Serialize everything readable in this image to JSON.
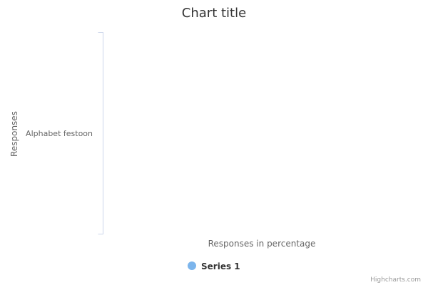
{
  "chart_data": {
    "type": "bar",
    "title": "Chart title",
    "xlabel": "Responses",
    "ylabel": "Responses in percentage",
    "categories": [
      "Alphabet festoon"
    ],
    "series": [
      {
        "name": "Series 1",
        "values": [
          0
        ]
      }
    ],
    "legend": "bottom-center",
    "grid": false,
    "colors": {
      "series_1": "#7cb5ec",
      "axis_line": "#ccd6eb"
    }
  },
  "credits": "Highcharts.com"
}
